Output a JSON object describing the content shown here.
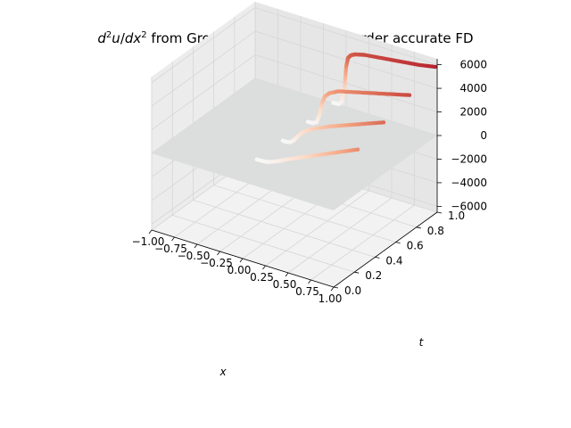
{
  "chart_data": {
    "type": "scatter",
    "title": "d²u/dx² from Ground Truth, using 2nd order accurate FD",
    "xlabel": "x",
    "ylabel": "t",
    "zlabel": "",
    "xlim": [
      -1.0,
      1.0
    ],
    "ylim": [
      0.0,
      1.0
    ],
    "zlim": [
      -6500,
      6500
    ],
    "x_ticks": [
      "−1.00",
      "−0.75",
      "−0.50",
      "−0.25",
      "0.00",
      "0.25",
      "0.50",
      "0.75",
      "1.00"
    ],
    "y_ticks": [
      "0.0",
      "0.2",
      "0.4",
      "0.6",
      "0.8",
      "1.0"
    ],
    "z_ticks": [
      "−6000",
      "−4000",
      "−2000",
      "0",
      "2000",
      "4000",
      "6000"
    ],
    "grid": true,
    "colormap": "RdBu_r",
    "surface_value": 0,
    "surface_color": "#dcdddd",
    "series": [
      {
        "t": 1.0,
        "x": [
          -0.5,
          -0.3,
          -0.15,
          -0.08,
          -0.05,
          -0.02,
          0.0,
          0.02,
          0.05,
          0.1,
          0.2,
          0.4,
          0.6,
          0.8,
          1.0
        ],
        "z": [
          0,
          0,
          0,
          50,
          300,
          1500,
          3400,
          4200,
          4500,
          4700,
          4900,
          5100,
          5300,
          5500,
          5800
        ]
      },
      {
        "t": 0.75,
        "x": [
          -0.5,
          -0.3,
          -0.15,
          -0.08,
          -0.04,
          -0.01,
          0.02,
          0.05,
          0.1,
          0.2,
          0.4,
          0.6,
          0.8,
          1.0
        ],
        "z": [
          0,
          0,
          0,
          30,
          200,
          900,
          2000,
          2600,
          3000,
          3400,
          3800,
          4200,
          4600,
          5000
        ]
      },
      {
        "t": 0.5,
        "x": [
          -0.5,
          -0.3,
          -0.15,
          -0.08,
          -0.04,
          0.0,
          0.05,
          0.1,
          0.2,
          0.4,
          0.6,
          0.8,
          1.0
        ],
        "z": [
          0,
          0,
          0,
          20,
          100,
          400,
          900,
          1300,
          1800,
          2500,
          3100,
          3700,
          4300
        ]
      },
      {
        "t": 0.25,
        "x": [
          -0.5,
          -0.3,
          -0.15,
          -0.05,
          0.0,
          0.1,
          0.2,
          0.4,
          0.6,
          0.8,
          1.0
        ],
        "z": [
          0,
          0,
          0,
          30,
          100,
          400,
          800,
          1500,
          2200,
          2900,
          3600
        ]
      }
    ]
  }
}
